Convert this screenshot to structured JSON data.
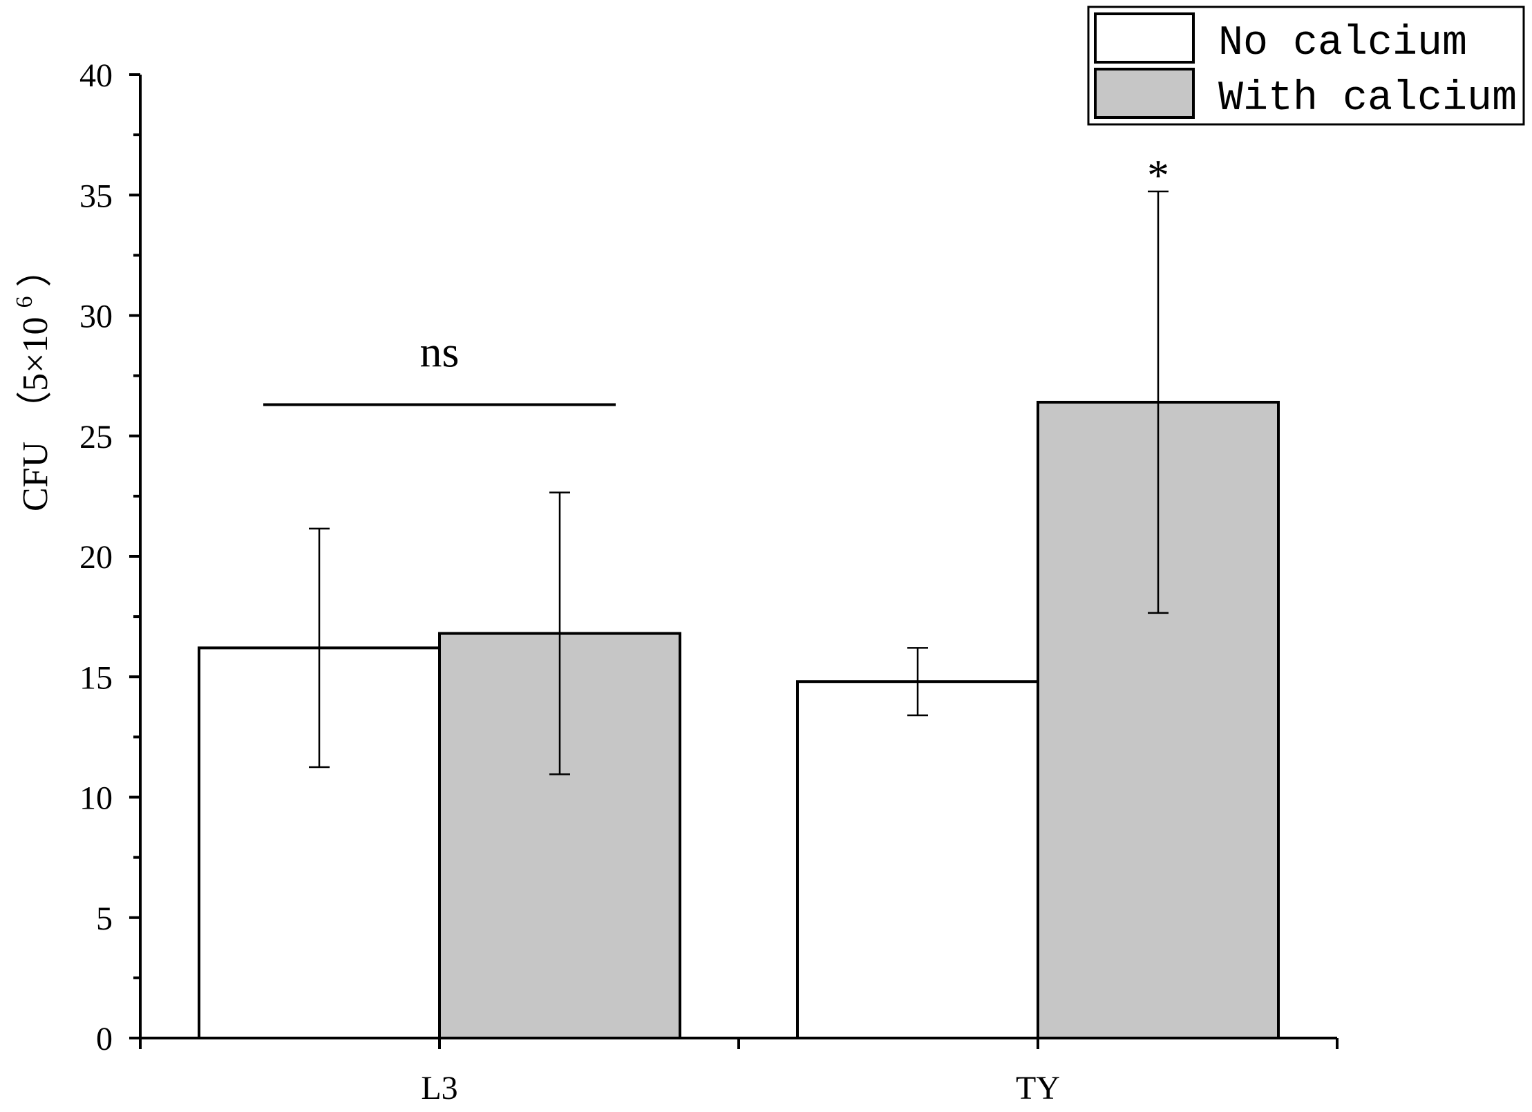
{
  "chart_data": {
    "type": "bar",
    "categories": [
      "L3",
      "TY"
    ],
    "series": [
      {
        "name": "No calcium",
        "color": "#ffffff",
        "values": [
          16.2,
          14.8
        ],
        "errors": [
          4.95,
          1.4
        ]
      },
      {
        "name": "With calcium",
        "color": "#c6c6c6",
        "values": [
          16.8,
          26.4
        ],
        "errors": [
          5.85,
          8.75
        ]
      }
    ],
    "title": "",
    "xlabel": "",
    "ylabel": {
      "main": "CFU",
      "unit_open": "（5×10",
      "unit_exp": "6",
      "unit_close": "）"
    },
    "ylim": [
      0,
      40
    ],
    "yticks": [
      "0",
      "5",
      "10",
      "15",
      "20",
      "25",
      "30",
      "35",
      "40"
    ],
    "ytick_values": [
      0,
      5,
      10,
      15,
      20,
      25,
      30,
      35,
      40
    ],
    "legend_position": "top-right",
    "grid": false,
    "annotations": [
      {
        "text": "ns",
        "category": "L3",
        "y": 26.3
      },
      {
        "text": "*",
        "category": "TY",
        "series": "With calcium"
      }
    ]
  }
}
